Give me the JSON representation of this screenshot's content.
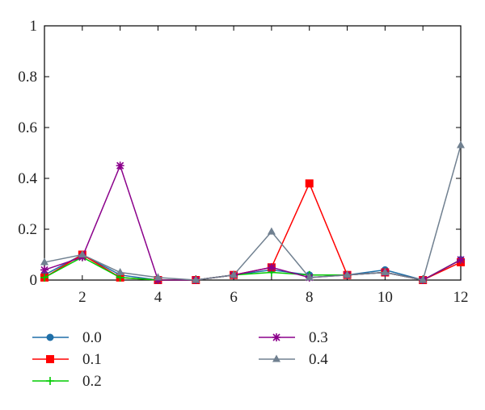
{
  "chart_data": {
    "type": "line",
    "title": "",
    "xlabel": "",
    "ylabel": "",
    "xlim": [
      1,
      12
    ],
    "ylim": [
      0,
      1
    ],
    "x": [
      1,
      2,
      3,
      4,
      5,
      6,
      7,
      8,
      9,
      10,
      11,
      12
    ],
    "x_ticks": [
      "2",
      "4",
      "6",
      "8",
      "10",
      "12"
    ],
    "y_ticks": [
      "0",
      "0.2",
      "0.4",
      "0.6",
      "0.8",
      "1"
    ],
    "grid": false,
    "legend_position": "bottom",
    "series": [
      {
        "name": "0.0",
        "color": "#1f6fa8",
        "marker": "circle",
        "values": [
          0.02,
          0.1,
          0.02,
          0.0,
          0.0,
          0.02,
          0.04,
          0.02,
          0.02,
          0.04,
          0.0,
          0.08
        ]
      },
      {
        "name": "0.1",
        "color": "#ff0000",
        "marker": "square",
        "values": [
          0.01,
          0.1,
          0.01,
          0.0,
          0.0,
          0.02,
          0.05,
          0.38,
          0.02,
          0.03,
          0.0,
          0.07
        ]
      },
      {
        "name": "0.2",
        "color": "#00cc00",
        "marker": "plus",
        "values": [
          0.01,
          0.09,
          0.01,
          0.0,
          0.0,
          0.02,
          0.03,
          0.02,
          0.02,
          0.03,
          0.0,
          0.08
        ]
      },
      {
        "name": "0.3",
        "color": "#8b008b",
        "marker": "star",
        "values": [
          0.04,
          0.09,
          0.45,
          0.0,
          0.0,
          0.02,
          0.05,
          0.01,
          0.02,
          0.03,
          0.0,
          0.08
        ]
      },
      {
        "name": "0.4",
        "color": "#708090",
        "marker": "triangle",
        "values": [
          0.07,
          0.1,
          0.03,
          0.01,
          0.0,
          0.02,
          0.19,
          0.01,
          0.02,
          0.03,
          0.0,
          0.53
        ]
      }
    ]
  }
}
